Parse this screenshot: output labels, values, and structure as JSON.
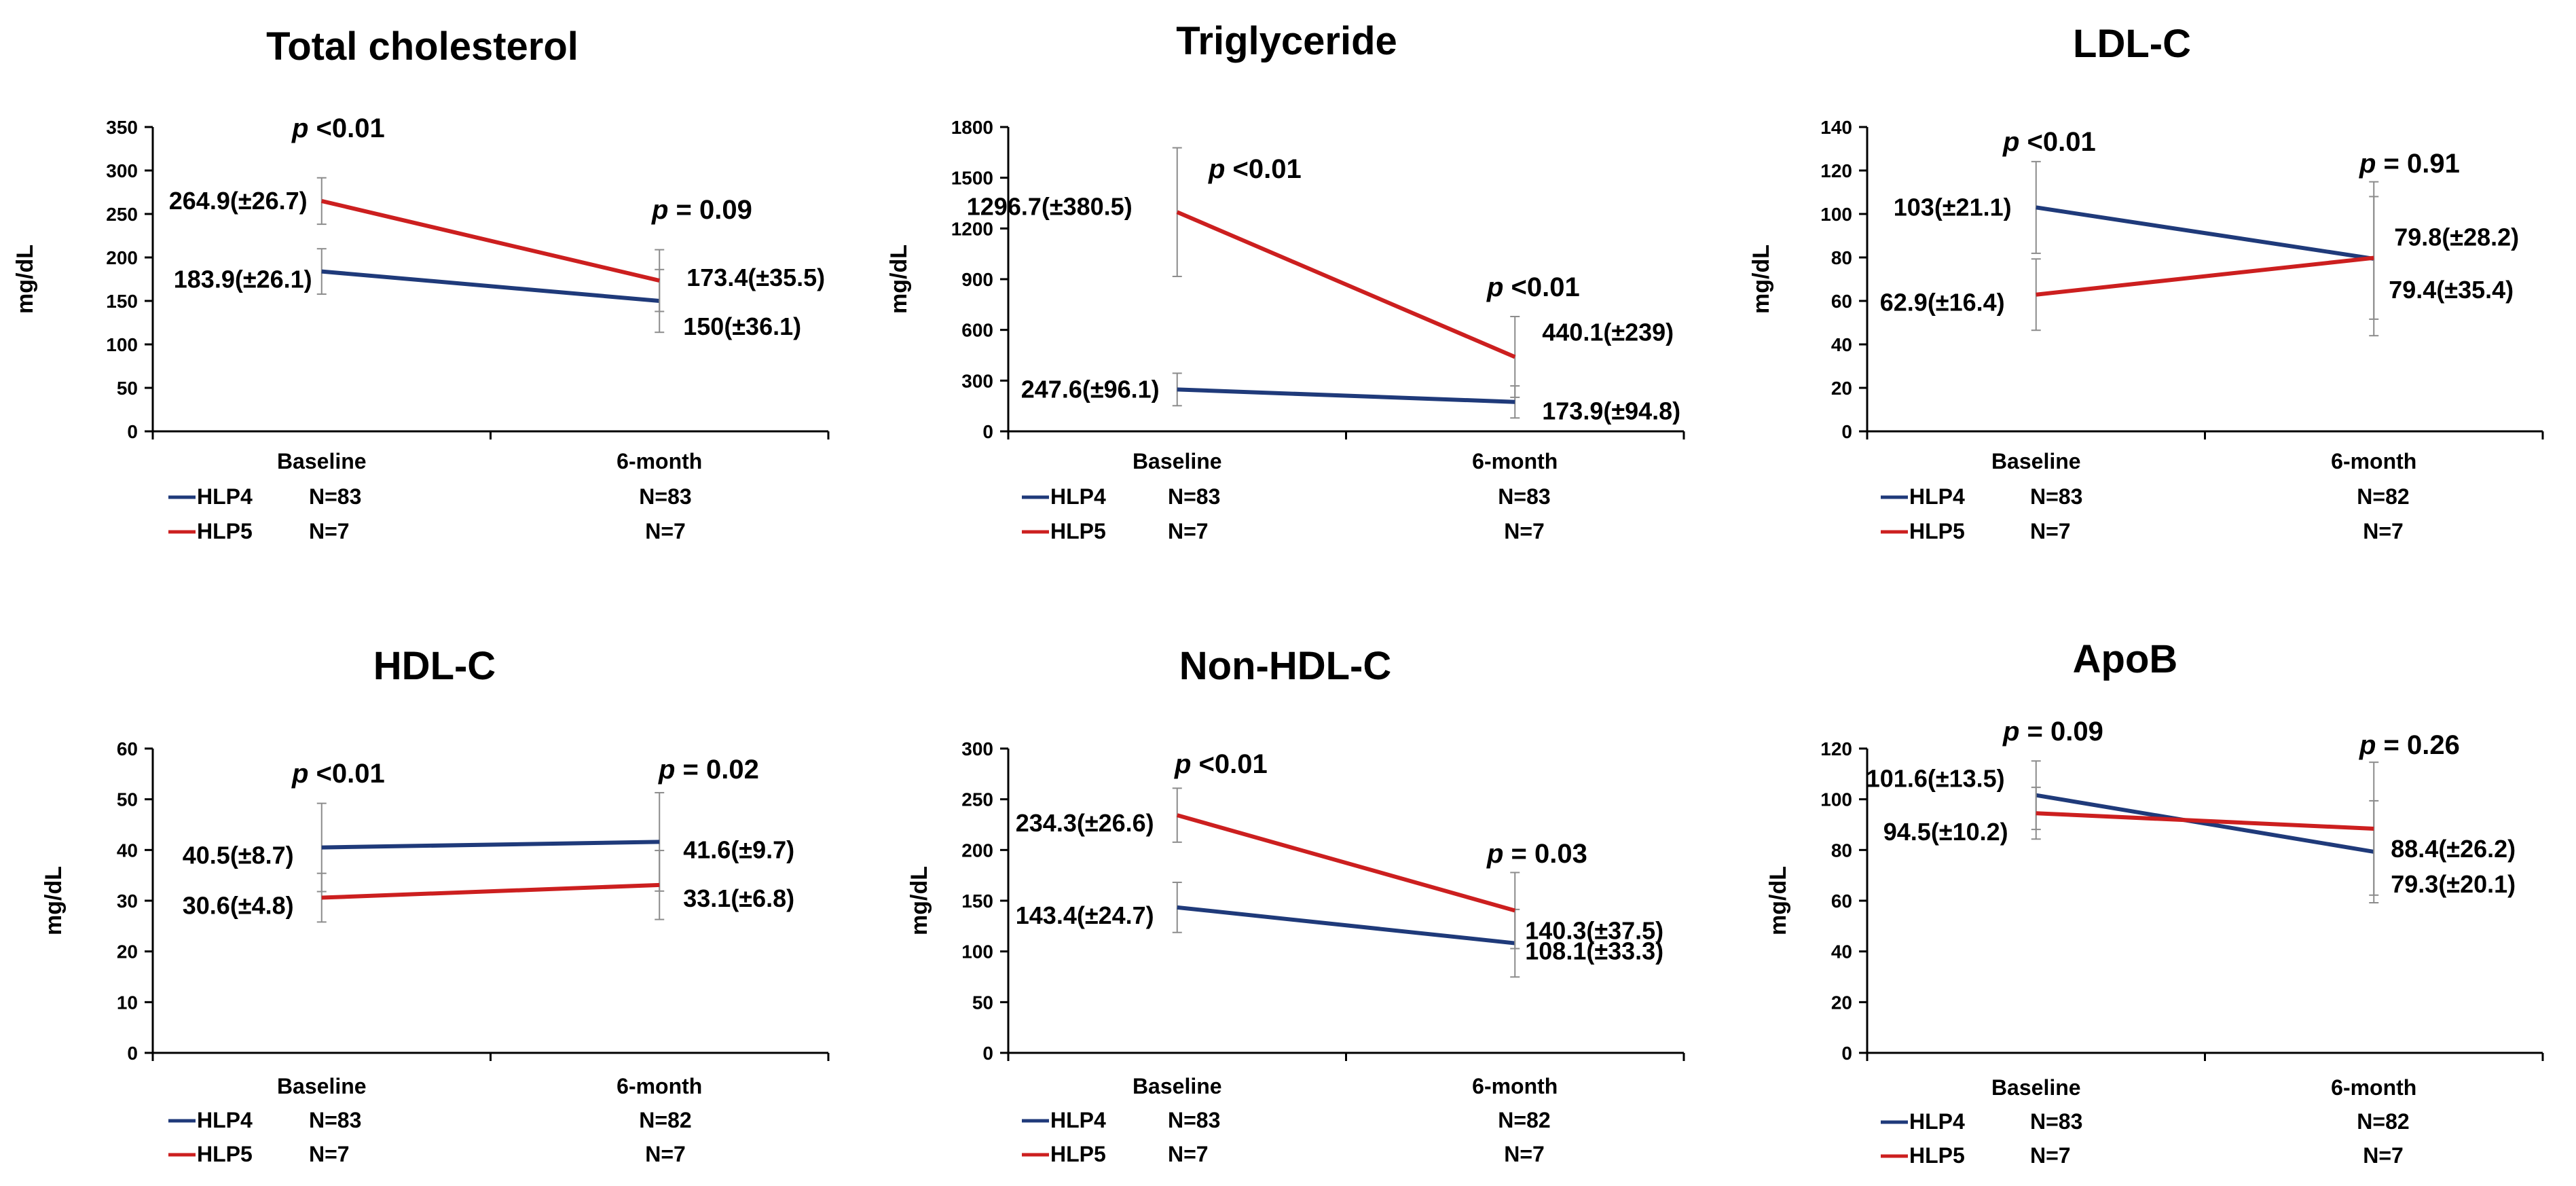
{
  "colors": {
    "HLP4": "#1f3a7a",
    "HLP5": "#cc1f1f",
    "errorbar": "#8c8c8c",
    "axis": "#000000"
  },
  "chart_data": [
    {
      "type": "line",
      "title": "Total cholesterol",
      "ylabel": "mg/dL",
      "categories": [
        "Baseline",
        "6-month"
      ],
      "ylim": [
        0,
        350
      ],
      "yticks": [
        0,
        50,
        100,
        150,
        200,
        250,
        300,
        350
      ],
      "series": [
        {
          "name": "HLP4",
          "values": [
            183.9,
            150
          ],
          "sd": [
            26.1,
            36.1
          ],
          "labels": [
            "183.9(±26.1)",
            "150(±36.1)"
          ],
          "n": [
            "N=83",
            "N=83"
          ]
        },
        {
          "name": "HLP5",
          "values": [
            264.9,
            173.4
          ],
          "sd": [
            26.7,
            35.5
          ],
          "labels": [
            "264.9(±26.7)",
            "173.4(±35.5)"
          ],
          "n": [
            "N=7",
            "N=7"
          ]
        }
      ],
      "pvalues": [
        {
          "p": "p",
          "text": " <0.01"
        },
        {
          "p": "p",
          "text": " = 0.09"
        }
      ]
    },
    {
      "type": "line",
      "title": "Triglyceride",
      "ylabel": "mg/dL",
      "categories": [
        "Baseline",
        "6-month"
      ],
      "ylim": [
        0,
        1800
      ],
      "yticks": [
        0,
        300,
        600,
        900,
        1200,
        1500,
        1800
      ],
      "series": [
        {
          "name": "HLP4",
          "values": [
            247.6,
            173.9
          ],
          "sd": [
            96.1,
            94.8
          ],
          "labels": [
            "247.6(±96.1)",
            "173.9(±94.8)"
          ],
          "n": [
            "N=83",
            "N=83"
          ]
        },
        {
          "name": "HLP5",
          "values": [
            1296.7,
            440.1
          ],
          "sd": [
            380.5,
            239
          ],
          "labels": [
            "1296.7(±380.5)",
            "440.1(±239)"
          ],
          "n": [
            "N=7",
            "N=7"
          ]
        }
      ],
      "pvalues": [
        {
          "p": "p",
          "text": " <0.01"
        },
        {
          "p": "p",
          "text": " <0.01"
        }
      ]
    },
    {
      "type": "line",
      "title": "LDL-C",
      "ylabel": "mg/dL",
      "categories": [
        "Baseline",
        "6-month"
      ],
      "ylim": [
        0,
        140
      ],
      "yticks": [
        0,
        20,
        40,
        60,
        80,
        100,
        120,
        140
      ],
      "series": [
        {
          "name": "HLP4",
          "values": [
            103,
            79.4
          ],
          "sd": [
            21.1,
            35.4
          ],
          "labels": [
            "103(±21.1)",
            "79.4(±35.4)"
          ],
          "n": [
            "N=83",
            "N=82"
          ]
        },
        {
          "name": "HLP5",
          "values": [
            62.9,
            79.8
          ],
          "sd": [
            16.4,
            28.2
          ],
          "labels": [
            "62.9(±16.4)",
            "79.8(±28.2)"
          ],
          "n": [
            "N=7",
            "N=7"
          ]
        }
      ],
      "pvalues": [
        {
          "p": "p",
          "text": " <0.01"
        },
        {
          "p": "p",
          "text": " = 0.91"
        }
      ]
    },
    {
      "type": "line",
      "title": "HDL-C",
      "ylabel": "mg/dL",
      "categories": [
        "Baseline",
        "6-month"
      ],
      "ylim": [
        0,
        60
      ],
      "yticks": [
        0,
        10,
        20,
        30,
        40,
        50,
        60
      ],
      "series": [
        {
          "name": "HLP4",
          "values": [
            40.5,
            41.6
          ],
          "sd": [
            8.7,
            9.7
          ],
          "labels": [
            "40.5(±8.7)",
            "41.6(±9.7)"
          ],
          "n": [
            "N=83",
            "N=82"
          ]
        },
        {
          "name": "HLP5",
          "values": [
            30.6,
            33.1
          ],
          "sd": [
            4.8,
            6.8
          ],
          "labels": [
            "30.6(±4.8)",
            "33.1(±6.8)"
          ],
          "n": [
            "N=7",
            "N=7"
          ]
        }
      ],
      "pvalues": [
        {
          "p": "p",
          "text": " <0.01"
        },
        {
          "p": "p",
          "text": " = 0.02"
        }
      ]
    },
    {
      "type": "line",
      "title": "Non-HDL-C",
      "ylabel": "mg/dL",
      "categories": [
        "Baseline",
        "6-month"
      ],
      "ylim": [
        0,
        300
      ],
      "yticks": [
        0,
        50,
        100,
        150,
        200,
        250,
        300
      ],
      "series": [
        {
          "name": "HLP4",
          "values": [
            143.4,
            108.1
          ],
          "sd": [
            24.7,
            33.3
          ],
          "labels": [
            "143.4(±24.7)",
            "108.1(±33.3)"
          ],
          "n": [
            "N=83",
            "N=82"
          ]
        },
        {
          "name": "HLP5",
          "values": [
            234.3,
            140.3
          ],
          "sd": [
            26.6,
            37.5
          ],
          "labels": [
            "234.3(±26.6)",
            "140.3(±37.5)"
          ],
          "n": [
            "N=7",
            "N=7"
          ]
        }
      ],
      "pvalues": [
        {
          "p": "p",
          "text": " <0.01"
        },
        {
          "p": "p",
          "text": " = 0.03"
        }
      ]
    },
    {
      "type": "line",
      "title": "ApoB",
      "ylabel": "mg/dL",
      "categories": [
        "Baseline",
        "6-month"
      ],
      "ylim": [
        0,
        120
      ],
      "yticks": [
        0,
        20,
        40,
        60,
        80,
        100,
        120
      ],
      "series": [
        {
          "name": "HLP4",
          "values": [
            101.6,
            79.3
          ],
          "sd": [
            13.5,
            20.1
          ],
          "labels": [
            "101.6(±13.5)",
            "79.3(±20.1)"
          ],
          "n": [
            "N=83",
            "N=82"
          ]
        },
        {
          "name": "HLP5",
          "values": [
            94.5,
            88.4
          ],
          "sd": [
            10.2,
            26.2
          ],
          "labels": [
            "94.5(±10.2)",
            "88.4(±26.2)"
          ],
          "n": [
            "N=7",
            "N=7"
          ]
        }
      ],
      "pvalues": [
        {
          "p": "p",
          "text": " = 0.09"
        },
        {
          "p": "p",
          "text": " = 0.26"
        }
      ]
    }
  ]
}
